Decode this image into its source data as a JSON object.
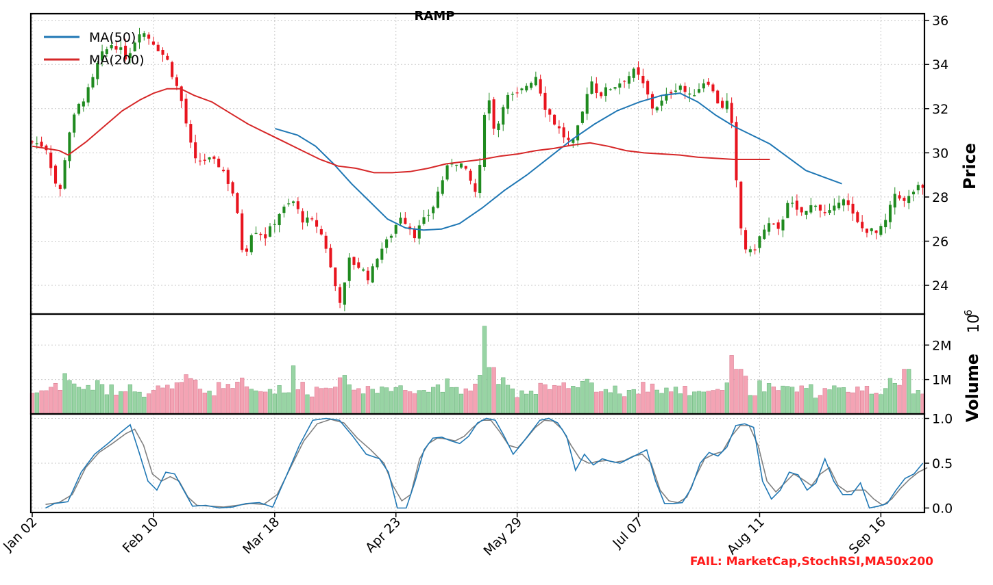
{
  "chart_data": {
    "type": "candlestick",
    "title": "RAMP",
    "annotation": "FAIL: MarketCap,StochRSI,MA50x200",
    "x_tick_labels": [
      "Jan 02",
      "Feb 10",
      "Mar 18",
      "Apr 23",
      "May 29",
      "Jul 07",
      "Aug 11",
      "Sep 16"
    ],
    "x_tick_index": [
      0,
      26,
      52,
      78,
      104,
      130,
      156,
      182
    ],
    "total_bars": 192,
    "grid": true,
    "colors": {
      "up": "#1f8a1f",
      "down": "#e8141e",
      "ma50": "#1f77b4",
      "ma200": "#d62728",
      "vol_up": "#98d4a4",
      "vol_down": "#f4a3b4",
      "stoch_k": "#1f77b4",
      "stoch_d": "#808080"
    },
    "price_panel": {
      "ylabel": "Price",
      "ylim": [
        22.7,
        36.3
      ],
      "yticks": [
        24,
        26,
        28,
        30,
        32,
        34,
        36
      ],
      "legend": {
        "position": "top-left",
        "entries": [
          "MA(50)",
          "MA(200)"
        ]
      },
      "close_anchors": [
        [
          0,
          30.5
        ],
        [
          3,
          30.3
        ],
        [
          6,
          28.0
        ],
        [
          8,
          30.8
        ],
        [
          10,
          32.0
        ],
        [
          13,
          33.0
        ],
        [
          15,
          34.3
        ],
        [
          18,
          35.0
        ],
        [
          21,
          34.3
        ],
        [
          24,
          35.6
        ],
        [
          27,
          35.0
        ],
        [
          30,
          34.2
        ],
        [
          33,
          32.5
        ],
        [
          36,
          29.6
        ],
        [
          39,
          29.7
        ],
        [
          42,
          29.4
        ],
        [
          45,
          28.0
        ],
        [
          47,
          25.2
        ],
        [
          49,
          26.6
        ],
        [
          52,
          26.2
        ],
        [
          55,
          27.3
        ],
        [
          58,
          27.8
        ],
        [
          60,
          27.0
        ],
        [
          63,
          26.8
        ],
        [
          65,
          26.0
        ],
        [
          67,
          24.2
        ],
        [
          69,
          23.0
        ],
        [
          70,
          25.2
        ],
        [
          73,
          24.8
        ],
        [
          75,
          24.3
        ],
        [
          77,
          25.5
        ],
        [
          79,
          26.0
        ],
        [
          82,
          27.2
        ],
        [
          85,
          26.3
        ],
        [
          87,
          26.9
        ],
        [
          89,
          27.5
        ],
        [
          91,
          28.7
        ],
        [
          93,
          29.6
        ],
        [
          95,
          29.6
        ],
        [
          97,
          28.9
        ],
        [
          99,
          28.0
        ],
        [
          101,
          33.0
        ],
        [
          103,
          30.8
        ],
        [
          105,
          32.5
        ],
        [
          108,
          32.6
        ],
        [
          110,
          33.1
        ],
        [
          112,
          33.5
        ],
        [
          114,
          32.1
        ],
        [
          116,
          31.4
        ],
        [
          118,
          30.8
        ],
        [
          120,
          30.3
        ],
        [
          122,
          31.5
        ],
        [
          124,
          33.4
        ],
        [
          126,
          32.6
        ],
        [
          128,
          32.9
        ],
        [
          130,
          33.1
        ],
        [
          132,
          33.4
        ],
        [
          134,
          33.7
        ],
        [
          136,
          33.0
        ],
        [
          138,
          32.0
        ],
        [
          140,
          32.3
        ],
        [
          142,
          32.8
        ],
        [
          144,
          33.1
        ],
        [
          146,
          32.5
        ],
        [
          148,
          32.9
        ],
        [
          150,
          33.4
        ],
        [
          152,
          32.4
        ],
        [
          154,
          32.0
        ],
        [
          155,
          32.6
        ],
        [
          156,
          29.8
        ],
        [
          157,
          27.6
        ],
        [
          158,
          25.8
        ],
        [
          160,
          25.4
        ],
        [
          162,
          26.3
        ],
        [
          164,
          26.8
        ],
        [
          166,
          26.4
        ],
        [
          168,
          27.9
        ],
        [
          170,
          27.3
        ],
        [
          172,
          27.3
        ],
        [
          174,
          27.8
        ],
        [
          176,
          27.2
        ],
        [
          178,
          27.3
        ],
        [
          180,
          28.2
        ],
        [
          182,
          27.3
        ],
        [
          184,
          26.6
        ],
        [
          186,
          26.5
        ],
        [
          188,
          26.3
        ],
        [
          190,
          27.0
        ],
        [
          192,
          28.3
        ],
        [
          194,
          27.7
        ],
        [
          196,
          28.3
        ],
        [
          197,
          28.4
        ],
        [
          198,
          28.3
        ]
      ],
      "ma50": [
        [
          54,
          31.1
        ],
        [
          59,
          30.8
        ],
        [
          63,
          30.3
        ],
        [
          67,
          29.5
        ],
        [
          71,
          28.6
        ],
        [
          75,
          27.8
        ],
        [
          79,
          27.0
        ],
        [
          83,
          26.6
        ],
        [
          87,
          26.5
        ],
        [
          91,
          26.55
        ],
        [
          95,
          26.8
        ],
        [
          100,
          27.5
        ],
        [
          105,
          28.3
        ],
        [
          110,
          29.0
        ],
        [
          115,
          29.8
        ],
        [
          120,
          30.6
        ],
        [
          125,
          31.3
        ],
        [
          130,
          31.9
        ],
        [
          135,
          32.3
        ],
        [
          140,
          32.6
        ],
        [
          144,
          32.7
        ],
        [
          148,
          32.3
        ],
        [
          152,
          31.7
        ],
        [
          156,
          31.2
        ],
        [
          160,
          30.8
        ],
        [
          164,
          30.4
        ],
        [
          168,
          29.8
        ],
        [
          172,
          29.2
        ],
        [
          176,
          28.9
        ],
        [
          180,
          28.6
        ]
      ],
      "ma200": [
        [
          0,
          30.3
        ],
        [
          3,
          30.2
        ],
        [
          6,
          30.1
        ],
        [
          8,
          29.9
        ],
        [
          12,
          30.5
        ],
        [
          16,
          31.2
        ],
        [
          20,
          31.9
        ],
        [
          24,
          32.4
        ],
        [
          27,
          32.7
        ],
        [
          30,
          32.9
        ],
        [
          33,
          32.9
        ],
        [
          36,
          32.6
        ],
        [
          40,
          32.3
        ],
        [
          44,
          31.8
        ],
        [
          48,
          31.3
        ],
        [
          52,
          30.9
        ],
        [
          56,
          30.5
        ],
        [
          60,
          30.1
        ],
        [
          64,
          29.7
        ],
        [
          68,
          29.4
        ],
        [
          72,
          29.3
        ],
        [
          76,
          29.1
        ],
        [
          80,
          29.1
        ],
        [
          84,
          29.15
        ],
        [
          88,
          29.3
        ],
        [
          92,
          29.5
        ],
        [
          96,
          29.6
        ],
        [
          100,
          29.7
        ],
        [
          104,
          29.85
        ],
        [
          108,
          29.95
        ],
        [
          112,
          30.1
        ],
        [
          116,
          30.2
        ],
        [
          120,
          30.35
        ],
        [
          124,
          30.45
        ],
        [
          128,
          30.3
        ],
        [
          132,
          30.1
        ],
        [
          136,
          30.0
        ],
        [
          140,
          29.95
        ],
        [
          144,
          29.9
        ],
        [
          148,
          29.8
        ],
        [
          152,
          29.75
        ],
        [
          156,
          29.7
        ],
        [
          160,
          29.7
        ],
        [
          164,
          29.7
        ]
      ]
    },
    "volume_panel": {
      "ylabel": "Volume",
      "scale_label": "10",
      "scale_exponent": "6",
      "ylim": [
        0,
        2.9
      ],
      "yticks": [
        1,
        2
      ],
      "ytick_labels": [
        "1M",
        "2M"
      ]
    },
    "stoch_panel": {
      "ylim": [
        -0.05,
        1.05
      ],
      "yticks": [
        0.0,
        0.5,
        1.0
      ],
      "ytick_labels": [
        "0.0",
        "0.5",
        "1.0"
      ],
      "k_anchors": [
        [
          3,
          0.0
        ],
        [
          5,
          0.05
        ],
        [
          8,
          0.07
        ],
        [
          11,
          0.4
        ],
        [
          14,
          0.6
        ],
        [
          17,
          0.72
        ],
        [
          20,
          0.85
        ],
        [
          22,
          0.93
        ],
        [
          24,
          0.62
        ],
        [
          26,
          0.3
        ],
        [
          28,
          0.2
        ],
        [
          30,
          0.4
        ],
        [
          32,
          0.38
        ],
        [
          34,
          0.2
        ],
        [
          36,
          0.02
        ],
        [
          39,
          0.03
        ],
        [
          42,
          0.0
        ],
        [
          45,
          0.01
        ],
        [
          48,
          0.05
        ],
        [
          51,
          0.06
        ],
        [
          54,
          0.01
        ],
        [
          57,
          0.35
        ],
        [
          60,
          0.7
        ],
        [
          63,
          0.98
        ],
        [
          66,
          1.0
        ],
        [
          69,
          0.98
        ],
        [
          72,
          0.8
        ],
        [
          75,
          0.6
        ],
        [
          78,
          0.55
        ],
        [
          80,
          0.4
        ],
        [
          82,
          0.0
        ],
        [
          84,
          0.0
        ],
        [
          86,
          0.3
        ],
        [
          88,
          0.65
        ],
        [
          90,
          0.78
        ],
        [
          92,
          0.79
        ],
        [
          94,
          0.75
        ],
        [
          96,
          0.72
        ],
        [
          98,
          0.8
        ],
        [
          100,
          0.95
        ],
        [
          102,
          1.0
        ],
        [
          104,
          0.98
        ],
        [
          106,
          0.8
        ],
        [
          108,
          0.6
        ],
        [
          110,
          0.72
        ],
        [
          112,
          0.85
        ],
        [
          114,
          0.98
        ],
        [
          116,
          1.0
        ],
        [
          118,
          0.95
        ],
        [
          120,
          0.8
        ],
        [
          122,
          0.42
        ],
        [
          124,
          0.6
        ],
        [
          126,
          0.48
        ],
        [
          128,
          0.55
        ],
        [
          130,
          0.52
        ],
        [
          132,
          0.5
        ],
        [
          134,
          0.55
        ],
        [
          136,
          0.6
        ],
        [
          138,
          0.65
        ],
        [
          140,
          0.3
        ],
        [
          142,
          0.05
        ],
        [
          144,
          0.05
        ],
        [
          146,
          0.06
        ],
        [
          148,
          0.22
        ],
        [
          150,
          0.5
        ],
        [
          152,
          0.62
        ],
        [
          154,
          0.58
        ],
        [
          156,
          0.68
        ],
        [
          158,
          0.92
        ],
        [
          160,
          0.94
        ],
        [
          162,
          0.9
        ],
        [
          164,
          0.3
        ],
        [
          166,
          0.1
        ],
        [
          168,
          0.2
        ],
        [
          170,
          0.4
        ],
        [
          172,
          0.37
        ],
        [
          174,
          0.2
        ],
        [
          176,
          0.28
        ],
        [
          178,
          0.55
        ],
        [
          180,
          0.3
        ],
        [
          182,
          0.15
        ],
        [
          184,
          0.15
        ],
        [
          186,
          0.28
        ],
        [
          188,
          0.0
        ],
        [
          190,
          0.02
        ],
        [
          192,
          0.05
        ],
        [
          194,
          0.2
        ],
        [
          196,
          0.33
        ],
        [
          198,
          0.38
        ],
        [
          200,
          0.5
        ]
      ],
      "d_anchors": [
        [
          3,
          0.04
        ],
        [
          6,
          0.06
        ],
        [
          9,
          0.15
        ],
        [
          12,
          0.45
        ],
        [
          15,
          0.62
        ],
        [
          18,
          0.72
        ],
        [
          21,
          0.83
        ],
        [
          23,
          0.88
        ],
        [
          25,
          0.7
        ],
        [
          27,
          0.38
        ],
        [
          29,
          0.3
        ],
        [
          31,
          0.35
        ],
        [
          33,
          0.3
        ],
        [
          35,
          0.12
        ],
        [
          37,
          0.03
        ],
        [
          40,
          0.02
        ],
        [
          43,
          0.01
        ],
        [
          46,
          0.03
        ],
        [
          49,
          0.05
        ],
        [
          52,
          0.04
        ],
        [
          55,
          0.15
        ],
        [
          58,
          0.45
        ],
        [
          61,
          0.75
        ],
        [
          64,
          0.94
        ],
        [
          67,
          0.99
        ],
        [
          70,
          0.95
        ],
        [
          73,
          0.78
        ],
        [
          76,
          0.65
        ],
        [
          79,
          0.5
        ],
        [
          81,
          0.25
        ],
        [
          83,
          0.08
        ],
        [
          85,
          0.15
        ],
        [
          87,
          0.55
        ],
        [
          89,
          0.72
        ],
        [
          91,
          0.78
        ],
        [
          93,
          0.77
        ],
        [
          95,
          0.75
        ],
        [
          97,
          0.8
        ],
        [
          99,
          0.9
        ],
        [
          101,
          0.98
        ],
        [
          103,
          0.98
        ],
        [
          105,
          0.85
        ],
        [
          107,
          0.7
        ],
        [
          109,
          0.67
        ],
        [
          111,
          0.78
        ],
        [
          113,
          0.9
        ],
        [
          115,
          0.98
        ],
        [
          117,
          0.97
        ],
        [
          119,
          0.88
        ],
        [
          121,
          0.7
        ],
        [
          123,
          0.55
        ],
        [
          125,
          0.5
        ],
        [
          127,
          0.52
        ],
        [
          129,
          0.53
        ],
        [
          131,
          0.51
        ],
        [
          133,
          0.53
        ],
        [
          135,
          0.58
        ],
        [
          137,
          0.6
        ],
        [
          139,
          0.5
        ],
        [
          141,
          0.2
        ],
        [
          143,
          0.08
        ],
        [
          145,
          0.06
        ],
        [
          147,
          0.12
        ],
        [
          149,
          0.35
        ],
        [
          151,
          0.55
        ],
        [
          153,
          0.6
        ],
        [
          155,
          0.63
        ],
        [
          157,
          0.8
        ],
        [
          159,
          0.92
        ],
        [
          161,
          0.92
        ],
        [
          163,
          0.7
        ],
        [
          165,
          0.3
        ],
        [
          167,
          0.18
        ],
        [
          169,
          0.28
        ],
        [
          171,
          0.38
        ],
        [
          173,
          0.32
        ],
        [
          175,
          0.25
        ],
        [
          177,
          0.38
        ],
        [
          179,
          0.45
        ],
        [
          181,
          0.25
        ],
        [
          183,
          0.18
        ],
        [
          185,
          0.2
        ],
        [
          187,
          0.2
        ],
        [
          189,
          0.1
        ],
        [
          191,
          0.03
        ],
        [
          193,
          0.1
        ],
        [
          195,
          0.22
        ],
        [
          197,
          0.32
        ],
        [
          199,
          0.4
        ],
        [
          201,
          0.45
        ]
      ]
    }
  }
}
